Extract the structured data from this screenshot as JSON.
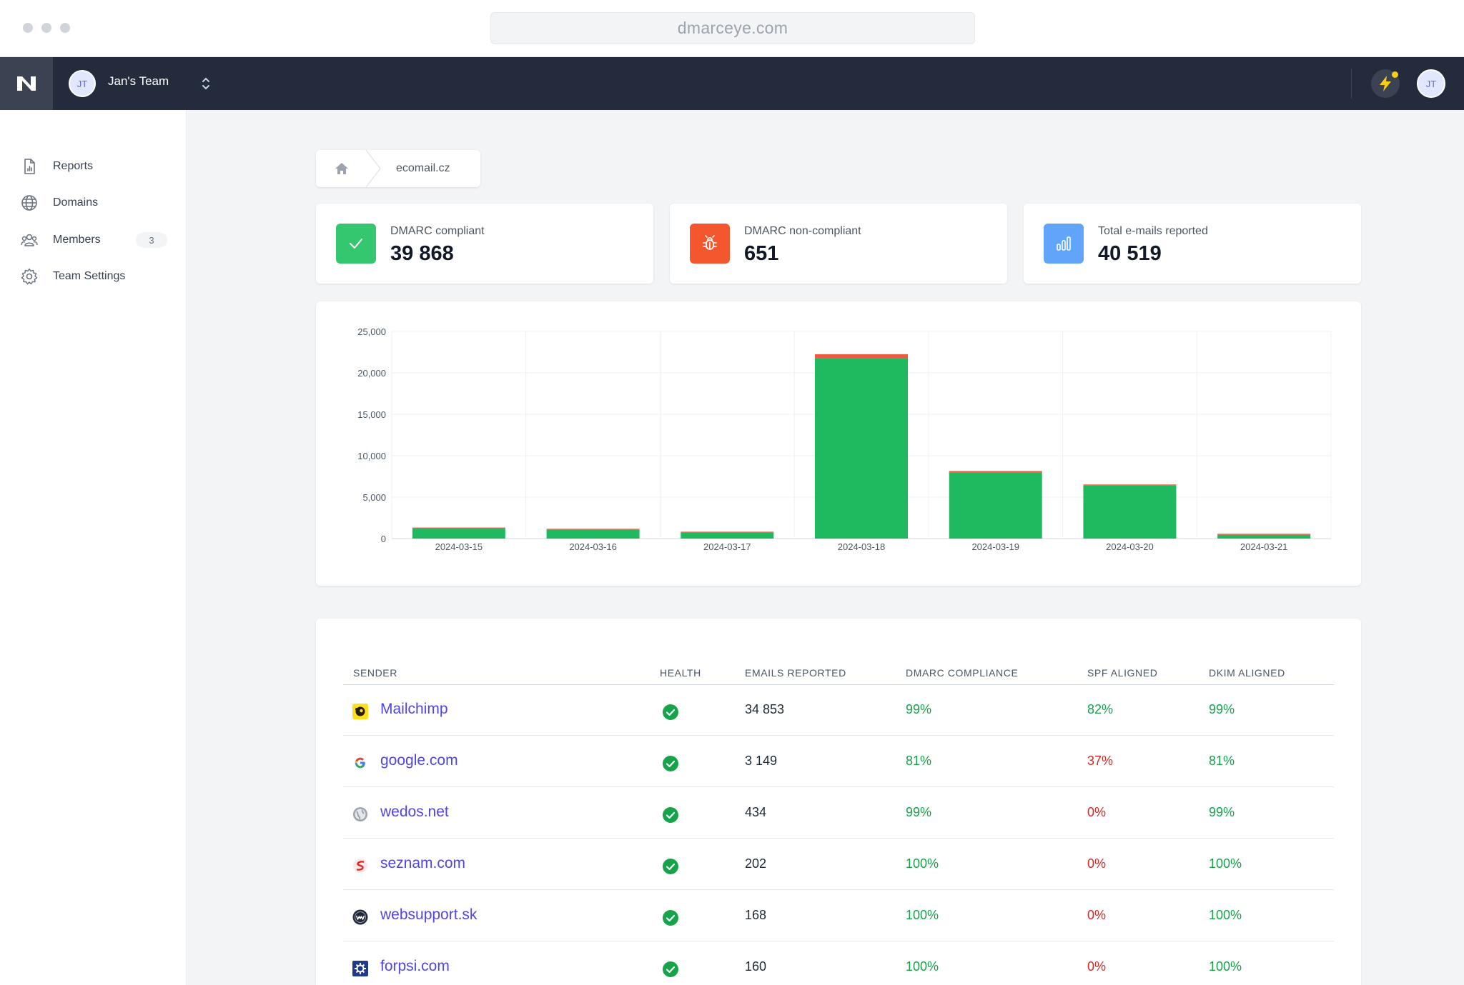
{
  "browser": {
    "url": "dmarceye.com"
  },
  "topnav": {
    "team_initials": "JT",
    "team_name": "Jan's Team",
    "user_initials": "JT"
  },
  "sidebar": {
    "items": [
      {
        "label": "Reports",
        "icon": "document-chart-icon"
      },
      {
        "label": "Domains",
        "icon": "globe-icon"
      },
      {
        "label": "Members",
        "icon": "users-icon",
        "badge": "3"
      },
      {
        "label": "Team Settings",
        "icon": "gear-icon"
      }
    ]
  },
  "breadcrumb": {
    "current": "ecomail.cz"
  },
  "stats": [
    {
      "label": "DMARC compliant",
      "value": "39 868",
      "color": "#34c76f",
      "icon": "check-icon"
    },
    {
      "label": "DMARC non-compliant",
      "value": "651",
      "color": "#f4572d",
      "icon": "bug-icon"
    },
    {
      "label": "Total e-mails reported",
      "value": "40 519",
      "color": "#60a5fa",
      "icon": "bar-chart-icon"
    }
  ],
  "chart_data": {
    "type": "bar",
    "stacked": true,
    "categories": [
      "2024-03-15",
      "2024-03-16",
      "2024-03-17",
      "2024-03-18",
      "2024-03-19",
      "2024-03-20",
      "2024-03-21"
    ],
    "series": [
      {
        "values": [
          1200,
          1050,
          700,
          21800,
          8000,
          6400,
          450
        ],
        "color": "#1fba5f"
      },
      {
        "values": [
          10,
          10,
          5,
          450,
          150,
          20,
          5
        ],
        "color": "#ef5a42"
      }
    ],
    "yticks": [
      "25,000",
      "20,000",
      "15,000",
      "10,000",
      "5,000",
      "0"
    ],
    "ylim": [
      0,
      25000
    ],
    "grid": true
  },
  "table": {
    "headers": [
      "SENDER",
      "HEALTH",
      "EMAILS REPORTED",
      "DMARC COMPLIANCE",
      "SPF ALIGNED",
      "DKIM ALIGNED"
    ],
    "rows": [
      {
        "sender": "Mailchimp",
        "icon": "mailchimp-icon",
        "emails": "34 853",
        "dmarc": "99%",
        "spf": "82%",
        "dkim": "99%",
        "spf_status": "good"
      },
      {
        "sender": "google.com",
        "icon": "google-icon",
        "emails": "3 149",
        "dmarc": "81%",
        "spf": "37%",
        "dkim": "81%",
        "spf_status": "bad"
      },
      {
        "sender": "wedos.net",
        "icon": "globe-gray-icon",
        "emails": "434",
        "dmarc": "99%",
        "spf": "0%",
        "dkim": "99%",
        "spf_status": "bad"
      },
      {
        "sender": "seznam.com",
        "icon": "seznam-icon",
        "emails": "202",
        "dmarc": "100%",
        "spf": "0%",
        "dkim": "100%",
        "spf_status": "bad"
      },
      {
        "sender": "websupport.sk",
        "icon": "websupport-icon",
        "emails": "168",
        "dmarc": "100%",
        "spf": "0%",
        "dkim": "100%",
        "spf_status": "bad"
      },
      {
        "sender": "forpsi.com",
        "icon": "forpsi-icon",
        "emails": "160",
        "dmarc": "100%",
        "spf": "0%",
        "dkim": "100%",
        "spf_status": "bad"
      }
    ]
  }
}
